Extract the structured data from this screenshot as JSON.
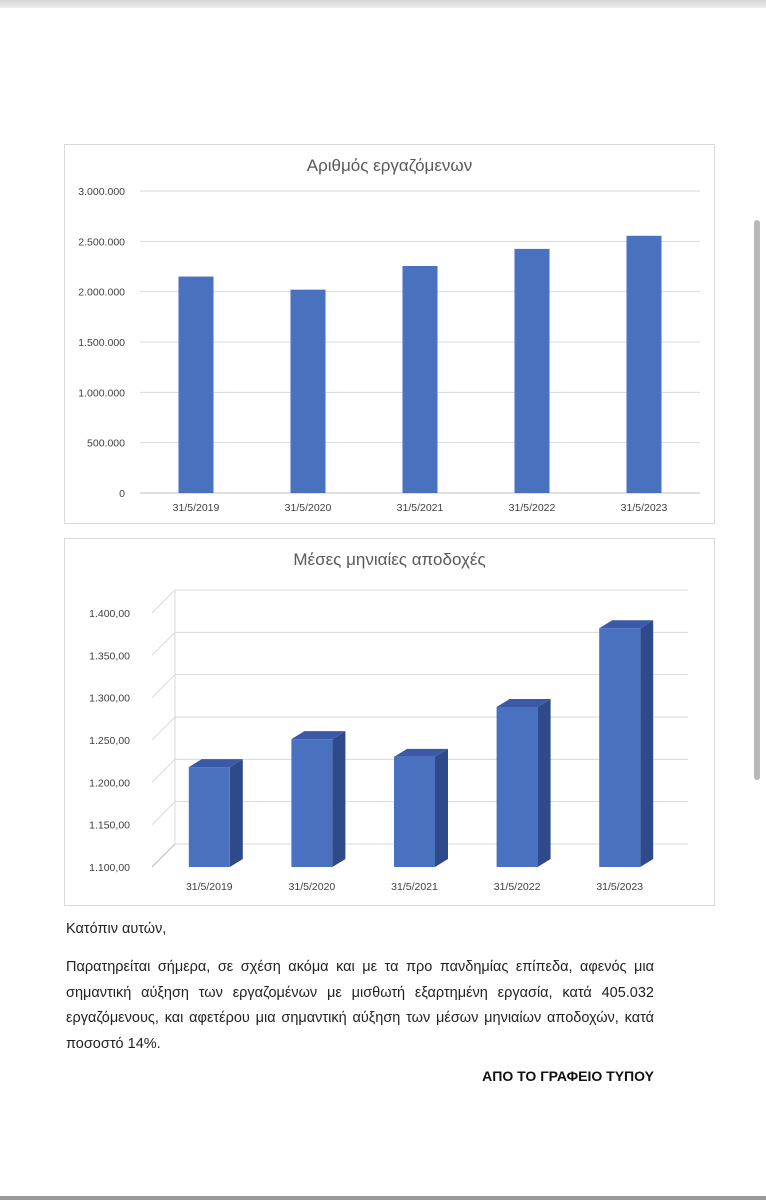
{
  "chart_data": [
    {
      "type": "bar",
      "title": "Αριθμός εργαζόμενων",
      "xlabel": "",
      "ylabel": "",
      "categories": [
        "31/5/2019",
        "31/5/2020",
        "31/5/2021",
        "31/5/2022",
        "31/5/2023"
      ],
      "values": [
        2150000,
        2020000,
        2255000,
        2425000,
        2555000
      ],
      "ylim": [
        0,
        3000000
      ],
      "yticks": [
        0,
        500000,
        1000000,
        1500000,
        2000000,
        2500000,
        3000000
      ],
      "ytick_labels": [
        "0",
        "500.000",
        "1.000.000",
        "1.500.000",
        "2.000.000",
        "2.500.000",
        "3.000.000"
      ],
      "grid": true,
      "legend": "none",
      "bar_color": "#4a70c0"
    },
    {
      "type": "bar",
      "style": "3d",
      "title": "Μέσες μηνιαίες αποδοχές",
      "xlabel": "",
      "ylabel": "",
      "categories": [
        "31/5/2019",
        "31/5/2020",
        "31/5/2021",
        "31/5/2022",
        "31/5/2023"
      ],
      "values": [
        1218,
        1251,
        1230,
        1289,
        1382
      ],
      "ylim": [
        1100,
        1400
      ],
      "yticks": [
        1100,
        1150,
        1200,
        1250,
        1300,
        1350,
        1400
      ],
      "ytick_labels": [
        "1.100,00",
        "1.150,00",
        "1.200,00",
        "1.250,00",
        "1.300,00",
        "1.350,00",
        "1.400,00"
      ],
      "grid": true,
      "legend": "none",
      "bar_color": "#4a70c0",
      "bar_side_color": "#2f4a8a",
      "bar_top_color": "#3a5aa8"
    }
  ],
  "text": {
    "intro": "Κατόπιν αυτών,",
    "paragraph": "Παρατηρείται σήμερα, σε σχέση ακόμα και με τα προ πανδημίας επίπεδα, αφενός μια σημαντική αύξηση των εργαζομένων με μισθωτή εξαρτημένη εργασία, κατά 405.032 εργαζόμενους, και αφετέρου μια σημαντική αύξηση των μέσων μηνιαίων αποδοχών, κατά ποσοστό 14%.",
    "signature": "ΑΠΟ ΤΟ ΓΡΑΦΕΙΟ ΤΥΠΟΥ"
  }
}
